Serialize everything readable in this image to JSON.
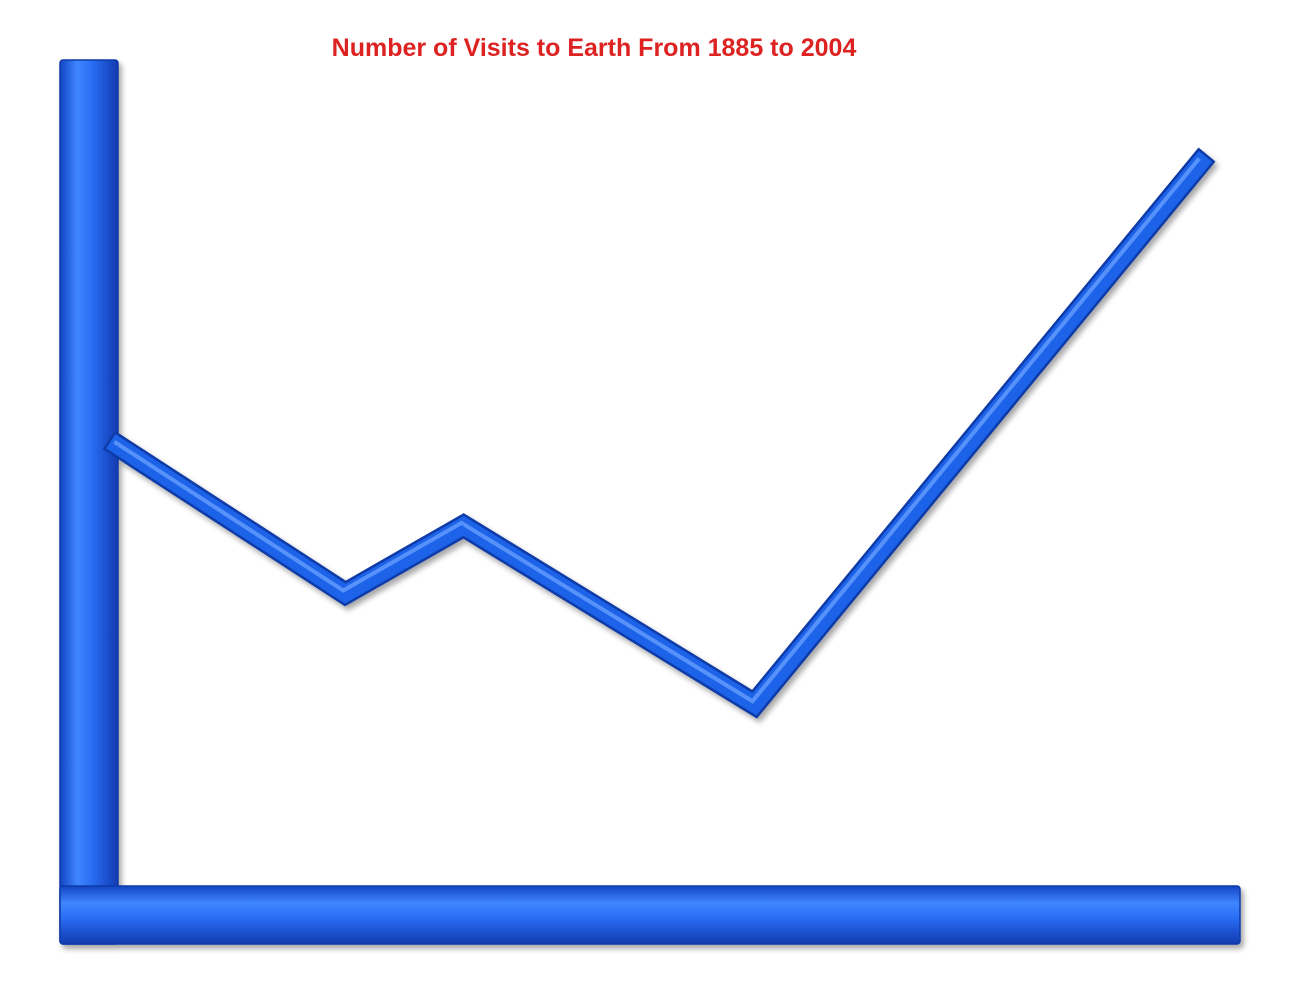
{
  "chart_data": {
    "type": "line",
    "title": "Number of Visits to Earth From 1885 to 2004",
    "xlabel": "",
    "ylabel": "",
    "grid": false,
    "legend": "none",
    "axis_color": "#1f5ee8",
    "line_color": "#1f63ea",
    "title_color": "#dd2222",
    "xlim": [
      1885,
      2004
    ],
    "ylim": [
      0,
      100
    ],
    "x": [
      1885,
      1910,
      1923,
      1955,
      2004
    ],
    "series": [
      {
        "values": [
          54,
          30,
          41,
          12,
          100
        ]
      }
    ]
  }
}
